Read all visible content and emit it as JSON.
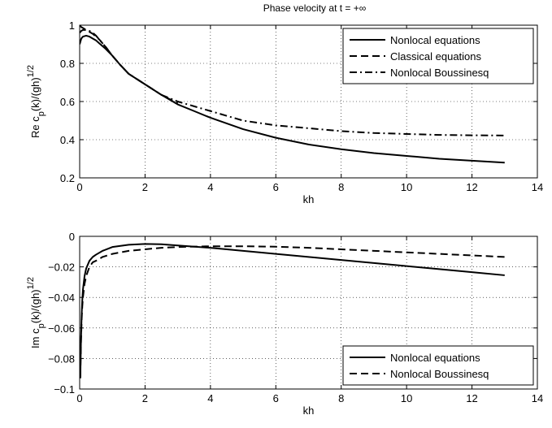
{
  "chart_data": [
    {
      "type": "line",
      "title": "Phase velocity at t = +∞",
      "xlabel": "kh",
      "ylabel": "Re c_p(k)/(gh)^{1/2}",
      "ylabel_parts": {
        "main": "Re c",
        "sub": "p",
        "mid": "(k)/(gh)",
        "sup": "1/2"
      },
      "xlim": [
        0,
        14
      ],
      "ylim": [
        0.2,
        1
      ],
      "xticks": [
        0,
        2,
        4,
        6,
        8,
        10,
        12,
        14
      ],
      "yticks": [
        0.2,
        0.4,
        0.6,
        0.8,
        1
      ],
      "xtick_labels": [
        "0",
        "2",
        "4",
        "6",
        "8",
        "10",
        "12",
        "14"
      ],
      "ytick_labels": [
        "0.2",
        "0.4",
        "0.6",
        "0.8",
        "1"
      ],
      "grid": true,
      "legend_position": "top-right",
      "series": [
        {
          "name": "Nonlocal equations",
          "style": "solid",
          "x": [
            0,
            0.05,
            0.1,
            0.2,
            0.3,
            0.4,
            0.5,
            0.6,
            0.8,
            1.0,
            1.25,
            1.5,
            2.0,
            2.5,
            3.0,
            3.5,
            4.0,
            5.0,
            6.0,
            7.0,
            8.0,
            9.0,
            10.0,
            11.0,
            12.0,
            13.0
          ],
          "y": [
            0.9,
            0.93,
            0.94,
            0.945,
            0.94,
            0.93,
            0.92,
            0.905,
            0.875,
            0.84,
            0.79,
            0.745,
            0.69,
            0.635,
            0.585,
            0.55,
            0.515,
            0.455,
            0.41,
            0.375,
            0.35,
            0.33,
            0.315,
            0.3,
            0.29,
            0.28
          ]
        },
        {
          "name": "Classical equations",
          "style": "dashed",
          "x": [
            0,
            0.05,
            0.1,
            0.2,
            0.3,
            0.4,
            0.5,
            0.6,
            0.8,
            1.0,
            1.25,
            1.5,
            2.0,
            2.5,
            3.0
          ],
          "y": [
            1.0,
            0.99,
            0.985,
            0.975,
            0.965,
            0.955,
            0.94,
            0.925,
            0.885,
            0.84,
            0.79,
            0.745,
            0.69,
            0.635,
            0.59
          ]
        },
        {
          "name": "Nonlocal Boussinesq",
          "style": "dashdot",
          "x": [
            0,
            0.05,
            0.1,
            0.2,
            0.3,
            0.4,
            0.5,
            0.6,
            0.8,
            1.0,
            1.25,
            1.5,
            2.0,
            2.5,
            3.0,
            3.5,
            4.0,
            5.0,
            6.0,
            7.0,
            8.0,
            9.0,
            10.0,
            11.0,
            12.0,
            13.0
          ],
          "y": [
            0.96,
            0.97,
            0.975,
            0.975,
            0.97,
            0.96,
            0.945,
            0.925,
            0.885,
            0.84,
            0.79,
            0.745,
            0.69,
            0.635,
            0.6,
            0.575,
            0.55,
            0.5,
            0.475,
            0.46,
            0.445,
            0.435,
            0.43,
            0.425,
            0.423,
            0.422
          ]
        }
      ]
    },
    {
      "type": "line",
      "xlabel": "kh",
      "ylabel": "Im c_p(k)/(gh)^{1/2}",
      "ylabel_parts": {
        "main": "Im c",
        "sub": "p",
        "mid": "(k)/(gh)",
        "sup": "1/2"
      },
      "xlim": [
        0,
        14
      ],
      "ylim": [
        -0.1,
        0
      ],
      "xticks": [
        0,
        2,
        4,
        6,
        8,
        10,
        12,
        14
      ],
      "yticks": [
        -0.1,
        -0.08,
        -0.06,
        -0.04,
        -0.02,
        0
      ],
      "xtick_labels": [
        "0",
        "2",
        "4",
        "6",
        "8",
        "10",
        "12",
        "14"
      ],
      "ytick_labels": [
        "−0.1",
        "−0.08",
        "−0.06",
        "−0.04",
        "−0.02",
        "0"
      ],
      "grid": true,
      "legend_position": "bottom-right",
      "series": [
        {
          "name": "Nonlocal equations",
          "style": "solid",
          "x": [
            0.02,
            0.04,
            0.06,
            0.08,
            0.1,
            0.15,
            0.2,
            0.3,
            0.4,
            0.5,
            0.7,
            1.0,
            1.5,
            2.0,
            2.5,
            3.0,
            4.0,
            5.0,
            6.0,
            7.0,
            8.0,
            9.0,
            10.0,
            11.0,
            12.0,
            13.0
          ],
          "y": [
            -0.093,
            -0.068,
            -0.052,
            -0.042,
            -0.035,
            -0.026,
            -0.021,
            -0.016,
            -0.0135,
            -0.012,
            -0.0095,
            -0.007,
            -0.0055,
            -0.005,
            -0.0052,
            -0.006,
            -0.0075,
            -0.0095,
            -0.0115,
            -0.0135,
            -0.0155,
            -0.0175,
            -0.0195,
            -0.0215,
            -0.0235,
            -0.0255
          ]
        },
        {
          "name": "Nonlocal Boussinesq",
          "style": "dashed",
          "x": [
            0.02,
            0.04,
            0.06,
            0.08,
            0.1,
            0.15,
            0.2,
            0.3,
            0.4,
            0.5,
            0.7,
            1.0,
            1.5,
            2.0,
            2.5,
            3.0,
            4.0,
            5.0,
            6.0,
            7.0,
            8.0,
            9.0,
            10.0,
            11.0,
            12.0,
            13.0
          ],
          "y": [
            -0.092,
            -0.07,
            -0.055,
            -0.046,
            -0.04,
            -0.031,
            -0.026,
            -0.02,
            -0.017,
            -0.016,
            -0.0135,
            -0.0115,
            -0.0095,
            -0.0085,
            -0.0075,
            -0.007,
            -0.0065,
            -0.0065,
            -0.0068,
            -0.0075,
            -0.0085,
            -0.0095,
            -0.0105,
            -0.0115,
            -0.0125,
            -0.0135
          ]
        }
      ]
    }
  ]
}
